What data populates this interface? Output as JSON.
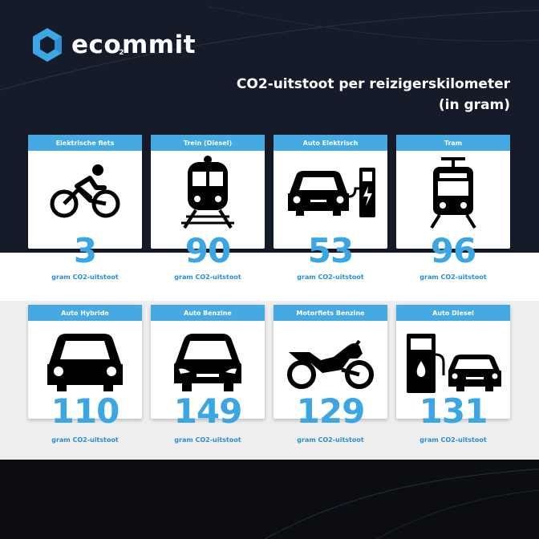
{
  "brand": {
    "name_start": "eco",
    "name_sub": "2",
    "name_end": "mmit",
    "accent_color": "#3ba7e5"
  },
  "title": {
    "line1": "CO2-uitstoot per reizigerskilometer",
    "line2": "(in gram)"
  },
  "unit_label": "gram CO2-uitstoot",
  "cards": [
    {
      "label": "Elektrische fiets",
      "value": "3",
      "icon": "bicycle-icon"
    },
    {
      "label": "Trein (Diesel)",
      "value": "90",
      "icon": "train-icon"
    },
    {
      "label": "Auto Elektrisch",
      "value": "53",
      "icon": "electric-car-icon"
    },
    {
      "label": "Tram",
      "value": "96",
      "icon": "tram-icon"
    },
    {
      "label": "Auto Hybride",
      "value": "110",
      "icon": "car-icon"
    },
    {
      "label": "Auto Benzine",
      "value": "149",
      "icon": "car-icon"
    },
    {
      "label": "Motorfiets Benzine",
      "value": "129",
      "icon": "motorcycle-icon"
    },
    {
      "label": "Auto Diesel",
      "value": "131",
      "icon": "fuel-car-icon"
    }
  ]
}
